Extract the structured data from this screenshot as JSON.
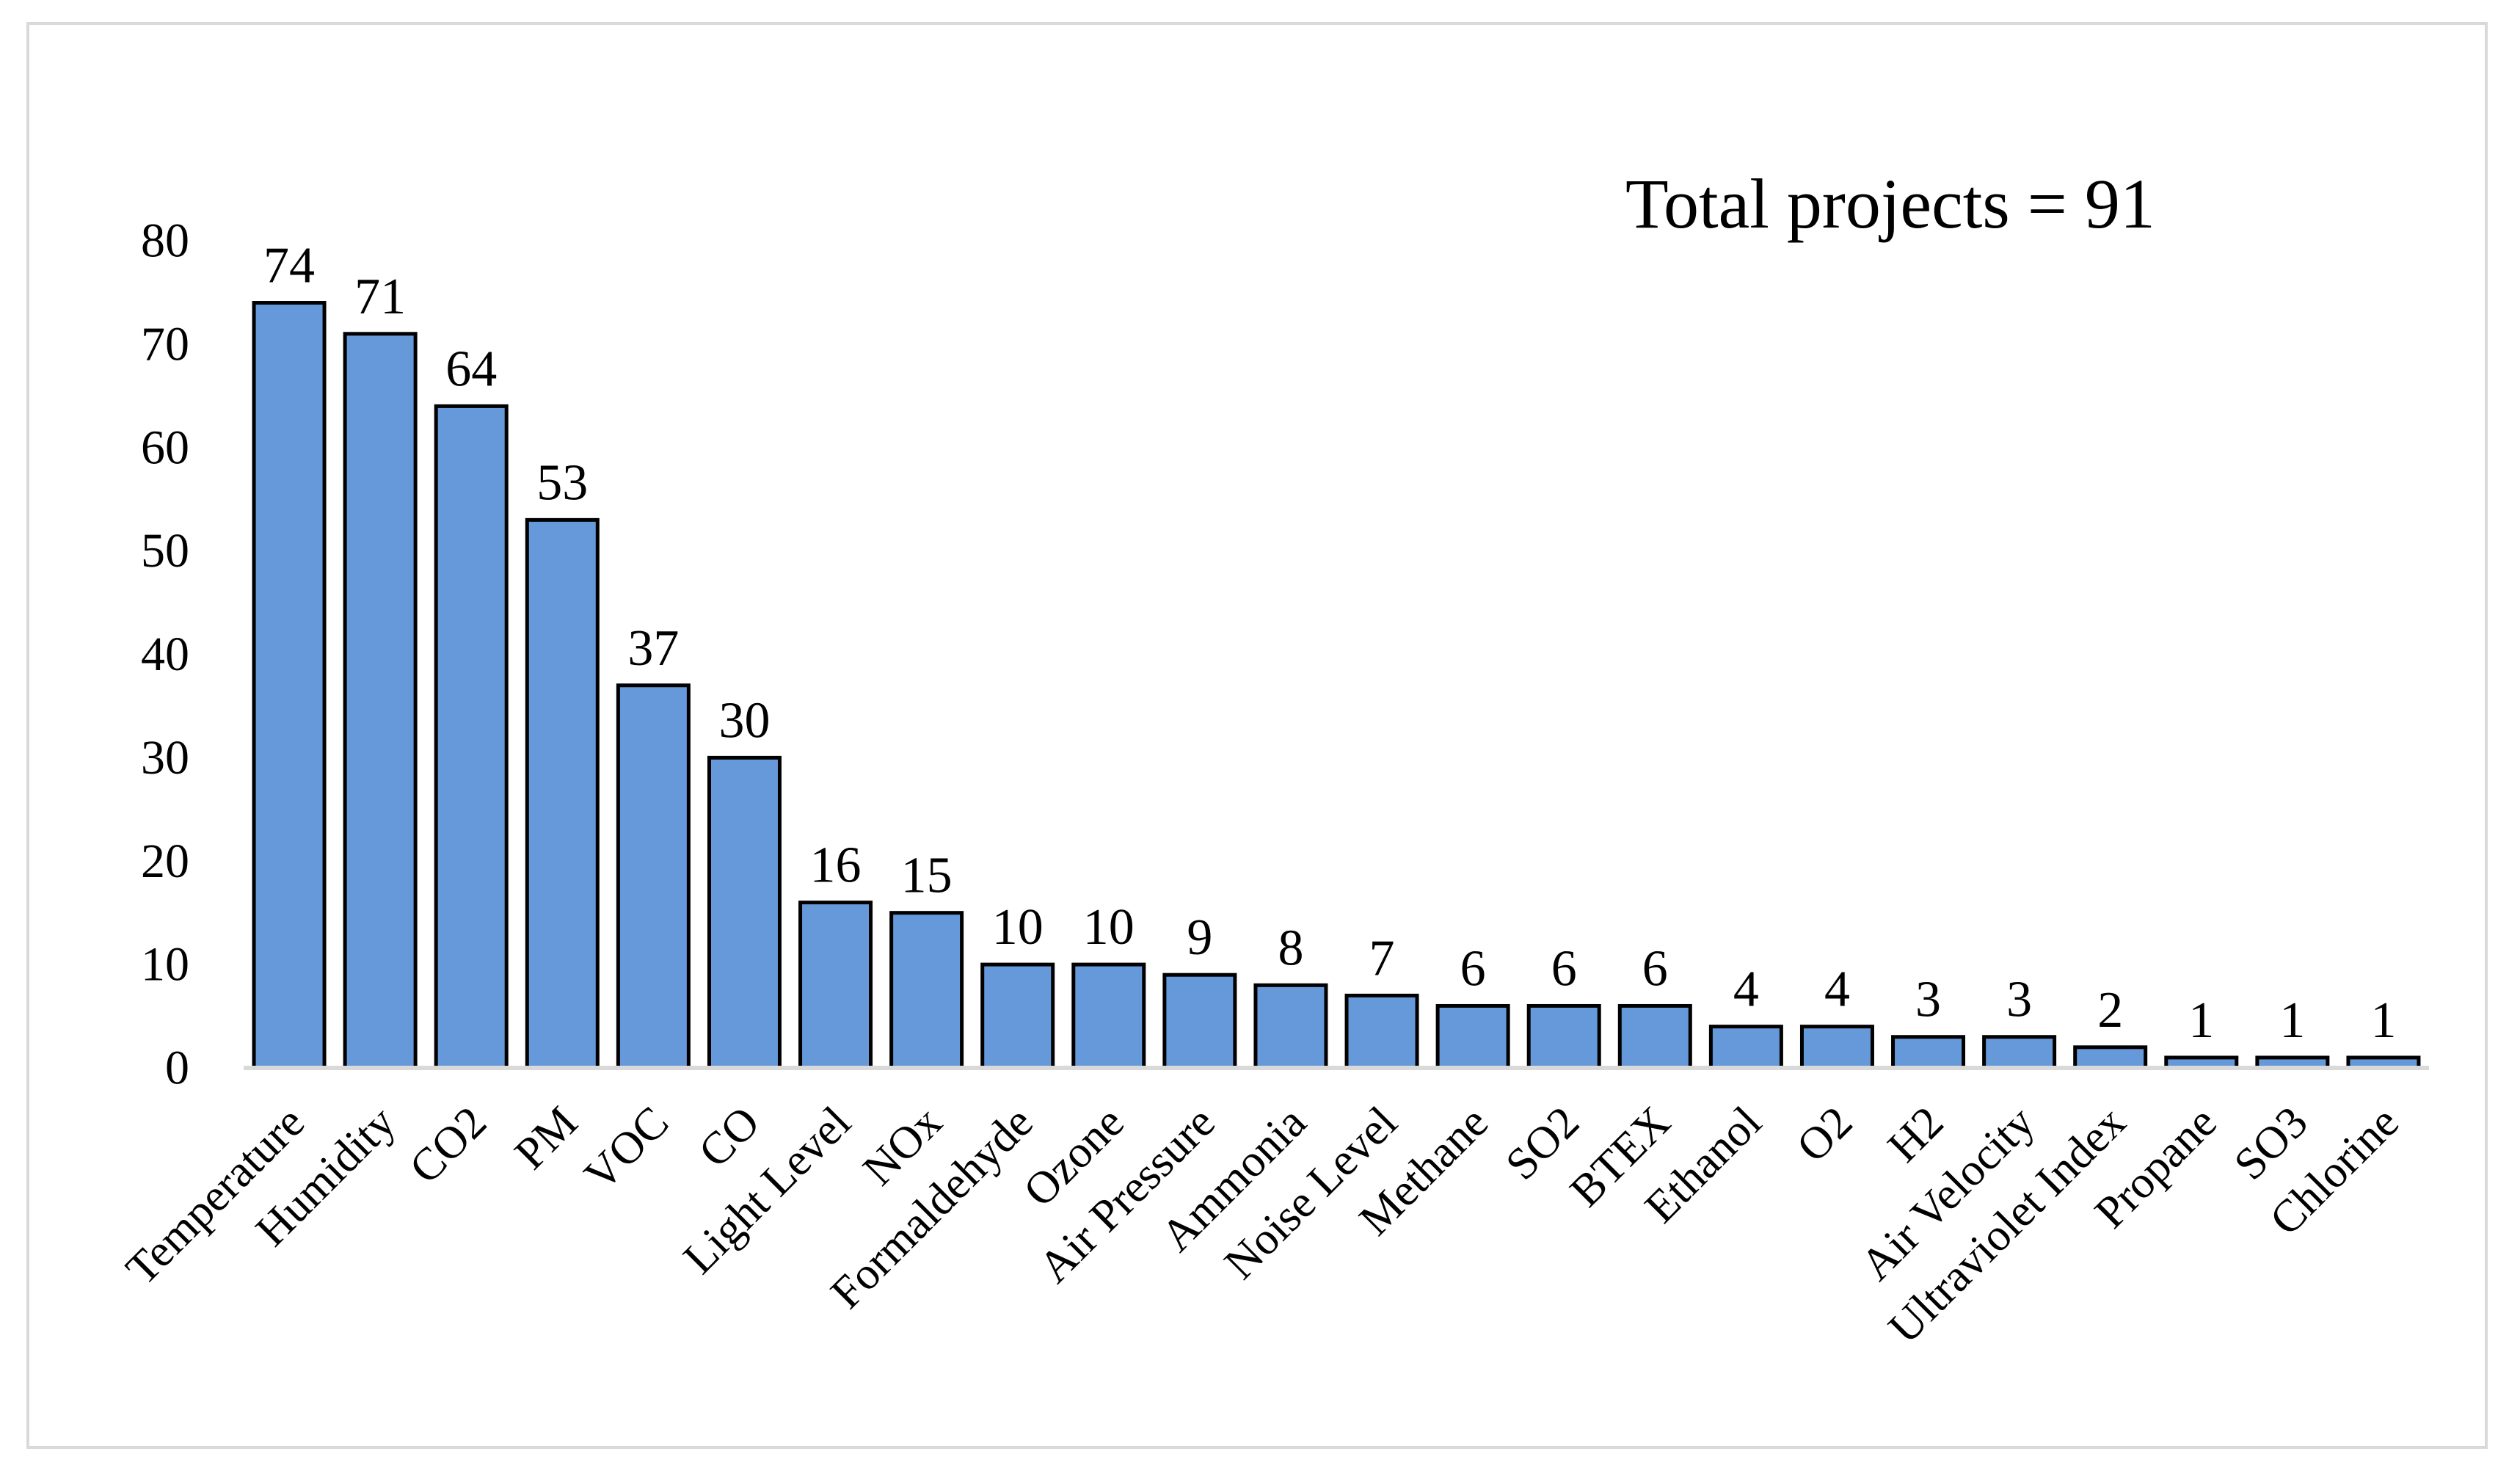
{
  "chart_data": {
    "type": "bar",
    "title": "",
    "annotation": "Total projects = 91",
    "xlabel": "",
    "ylabel": "",
    "ylim": [
      0,
      80
    ],
    "yticks": [
      0,
      10,
      20,
      30,
      40,
      50,
      60,
      70,
      80
    ],
    "grid": false,
    "legend": "none",
    "categories": [
      "Temperature",
      "Humidity",
      "CO2",
      "PM",
      "VOC",
      "CO",
      "Light Level",
      "NOx",
      "Formaldehyde",
      "Ozone",
      "Air Pressure",
      "Ammonia",
      "Noise Level",
      "Methane",
      "SO2",
      "BTEX",
      "Ethanol",
      "O2",
      "H2",
      "Air Velocity",
      "Ultraviolet Index",
      "Propane",
      "SO3",
      "Chlorine"
    ],
    "values": [
      74,
      71,
      64,
      53,
      37,
      30,
      16,
      15,
      10,
      10,
      9,
      8,
      7,
      6,
      6,
      6,
      4,
      4,
      3,
      3,
      2,
      1,
      1,
      1
    ],
    "colors": {
      "bar_fill": "#6699d9",
      "bar_stroke": "#000000",
      "axis": "#d9d9d9",
      "frame": "#d9d9d9"
    }
  }
}
